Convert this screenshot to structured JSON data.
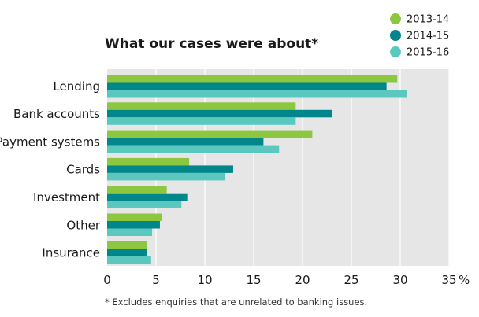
{
  "chart_data": {
    "type": "bar",
    "orientation": "horizontal",
    "title": "What our cases were about*",
    "footnote": "* Excludes enquiries that are unrelated to banking issues.",
    "xlabel": "",
    "ylabel": "",
    "x_unit": "%",
    "xlim": [
      0,
      35
    ],
    "x_ticks": [
      0,
      5,
      10,
      15,
      20,
      25,
      30,
      35
    ],
    "x_tick_labels": [
      "0",
      "5",
      "10",
      "15",
      "20",
      "25",
      "30",
      "35"
    ],
    "grid": true,
    "legend_position": "top-right",
    "categories": [
      "Lending",
      "Bank accounts",
      "Payment systems",
      "Cards",
      "Investment",
      "Other",
      "Insurance"
    ],
    "series": [
      {
        "name": "2013-14",
        "color": "#8dc63f",
        "values": [
          29.7,
          19.3,
          21.0,
          8.4,
          6.1,
          5.6,
          4.1
        ]
      },
      {
        "name": "2014-15",
        "color": "#00868b",
        "values": [
          28.6,
          23.0,
          16.0,
          12.9,
          8.2,
          5.4,
          4.1
        ]
      },
      {
        "name": "2015-16",
        "color": "#5bc8c0",
        "values": [
          30.7,
          19.3,
          17.6,
          12.1,
          7.6,
          4.6,
          4.5
        ]
      }
    ],
    "background_color": "#e6e6e6"
  }
}
